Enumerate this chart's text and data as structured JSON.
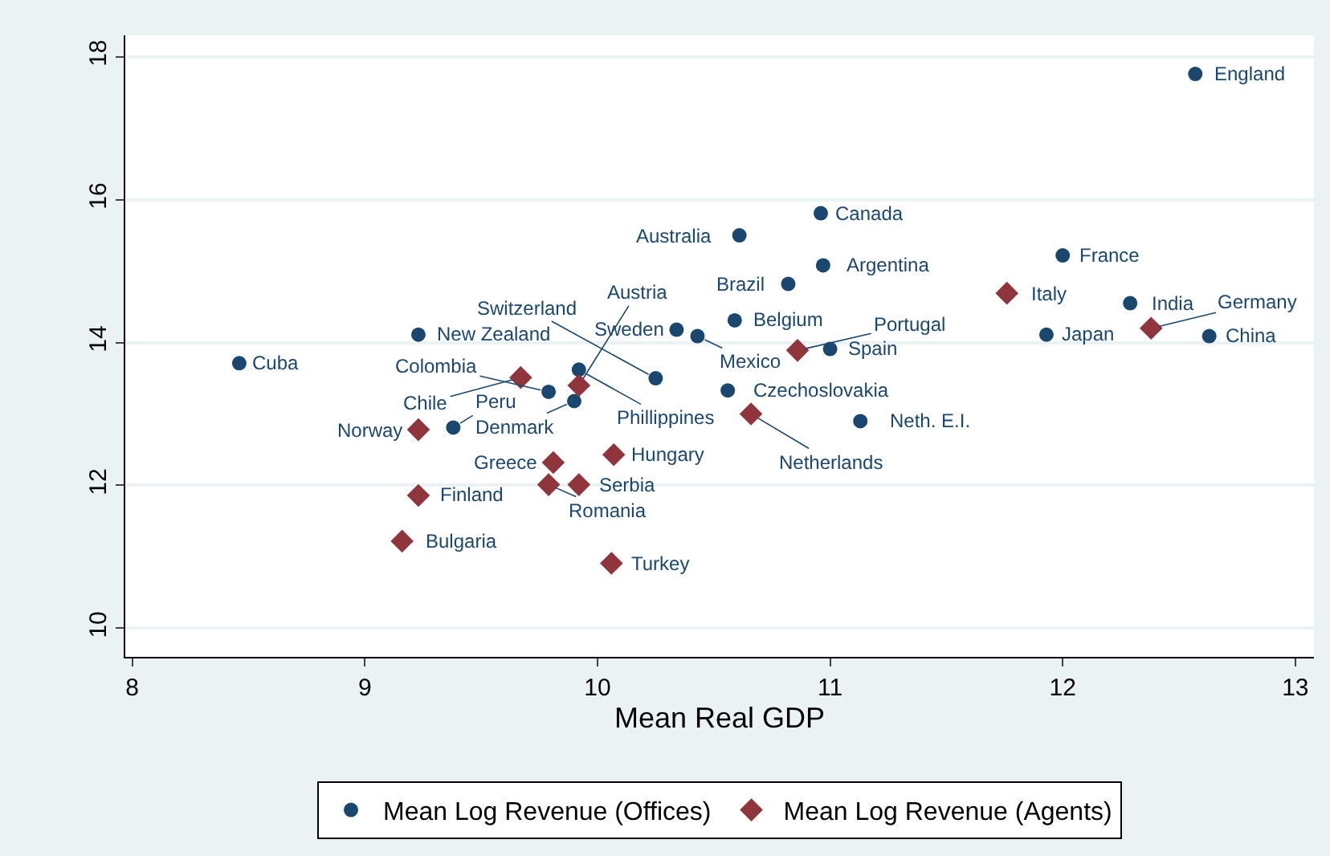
{
  "chart_data": {
    "type": "scatter",
    "xlabel": "Mean Real GDP",
    "xlim": [
      7.97,
      13.08
    ],
    "xticks": [
      8,
      9,
      10,
      11,
      12,
      13
    ],
    "ylim": [
      9.6,
      18.3
    ],
    "yticks": [
      10,
      12,
      14,
      16,
      18
    ],
    "grid": "y",
    "legend": "bottom",
    "series": [
      {
        "name": "Mean Log Revenue (Offices)",
        "color": "#1a476f",
        "marker": "circle",
        "x": [
          12.57,
          10.96,
          10.61,
          10.97,
          10.82,
          12.0,
          12.29,
          11.93,
          12.63,
          10.59,
          10.34,
          10.43,
          11.0,
          9.23,
          8.46,
          9.92,
          10.25,
          10.56,
          9.79,
          9.9,
          9.38,
          11.13
        ],
        "values": [
          17.76,
          15.81,
          15.5,
          15.08,
          14.82,
          15.22,
          14.55,
          14.11,
          14.09,
          14.31,
          14.18,
          14.09,
          13.91,
          14.11,
          13.71,
          13.62,
          13.5,
          13.33,
          13.31,
          13.18,
          12.81,
          12.9
        ]
      },
      {
        "name": "Mean Log Revenue (Agents)",
        "color": "#90353b",
        "marker": "diamond",
        "x": [
          11.76,
          12.38,
          10.86,
          10.66,
          10.07,
          9.81,
          9.79,
          9.92,
          9.23,
          9.16,
          10.06,
          9.92,
          9.67,
          9.23
        ],
        "values": [
          14.69,
          14.2,
          13.89,
          13.0,
          12.43,
          12.32,
          12.01,
          12.01,
          11.86,
          11.22,
          10.91,
          13.4,
          13.51,
          12.78
        ]
      }
    ],
    "annotations": [
      {
        "text": "England",
        "x": 12.57,
        "y": 17.76
      },
      {
        "text": "Canada",
        "x": 10.96,
        "y": 15.81
      },
      {
        "text": "Australia",
        "x": 10.61,
        "y": 15.5
      },
      {
        "text": "Argentina",
        "x": 10.97,
        "y": 15.08
      },
      {
        "text": "Brazil",
        "x": 10.82,
        "y": 14.82
      },
      {
        "text": "France",
        "x": 12.0,
        "y": 15.22
      },
      {
        "text": "India",
        "x": 12.29,
        "y": 14.55
      },
      {
        "text": "Japan",
        "x": 11.93,
        "y": 14.11
      },
      {
        "text": "China",
        "x": 12.63,
        "y": 14.09
      },
      {
        "text": "Belgium",
        "x": 10.59,
        "y": 14.31
      },
      {
        "text": "Sweden",
        "x": 10.34,
        "y": 14.18
      },
      {
        "text": "Mexico",
        "x": 10.43,
        "y": 14.09
      },
      {
        "text": "Spain",
        "x": 11.0,
        "y": 13.91
      },
      {
        "text": "New Zealand",
        "x": 9.23,
        "y": 14.11
      },
      {
        "text": "Cuba",
        "x": 8.46,
        "y": 13.71
      },
      {
        "text": "Phillippines",
        "x": 9.92,
        "y": 13.62
      },
      {
        "text": "Switzerland",
        "x": 10.25,
        "y": 13.5
      },
      {
        "text": "Czechoslovakia",
        "x": 10.56,
        "y": 13.33
      },
      {
        "text": "Colombia",
        "x": 9.79,
        "y": 13.31
      },
      {
        "text": "Denmark",
        "x": 9.9,
        "y": 13.18
      },
      {
        "text": "Peru",
        "x": 9.38,
        "y": 12.81
      },
      {
        "text": "Neth. E.I.",
        "x": 11.13,
        "y": 12.9
      },
      {
        "text": "Italy",
        "x": 11.76,
        "y": 14.69
      },
      {
        "text": "Germany",
        "x": 12.38,
        "y": 14.2
      },
      {
        "text": "Portugal",
        "x": 10.86,
        "y": 13.89
      },
      {
        "text": "Netherlands",
        "x": 10.66,
        "y": 13.0
      },
      {
        "text": "Hungary",
        "x": 10.07,
        "y": 12.43
      },
      {
        "text": "Greece",
        "x": 9.81,
        "y": 12.32
      },
      {
        "text": "Romania",
        "x": 9.79,
        "y": 12.01
      },
      {
        "text": "Serbia",
        "x": 9.92,
        "y": 12.01
      },
      {
        "text": "Finland",
        "x": 9.23,
        "y": 11.86
      },
      {
        "text": "Bulgaria",
        "x": 9.16,
        "y": 11.22
      },
      {
        "text": "Turkey",
        "x": 10.06,
        "y": 10.91
      },
      {
        "text": "Austria",
        "x": 9.92,
        "y": 13.4
      },
      {
        "text": "Chile",
        "x": 9.67,
        "y": 13.51
      },
      {
        "text": "Norway",
        "x": 9.23,
        "y": 12.78
      }
    ]
  }
}
